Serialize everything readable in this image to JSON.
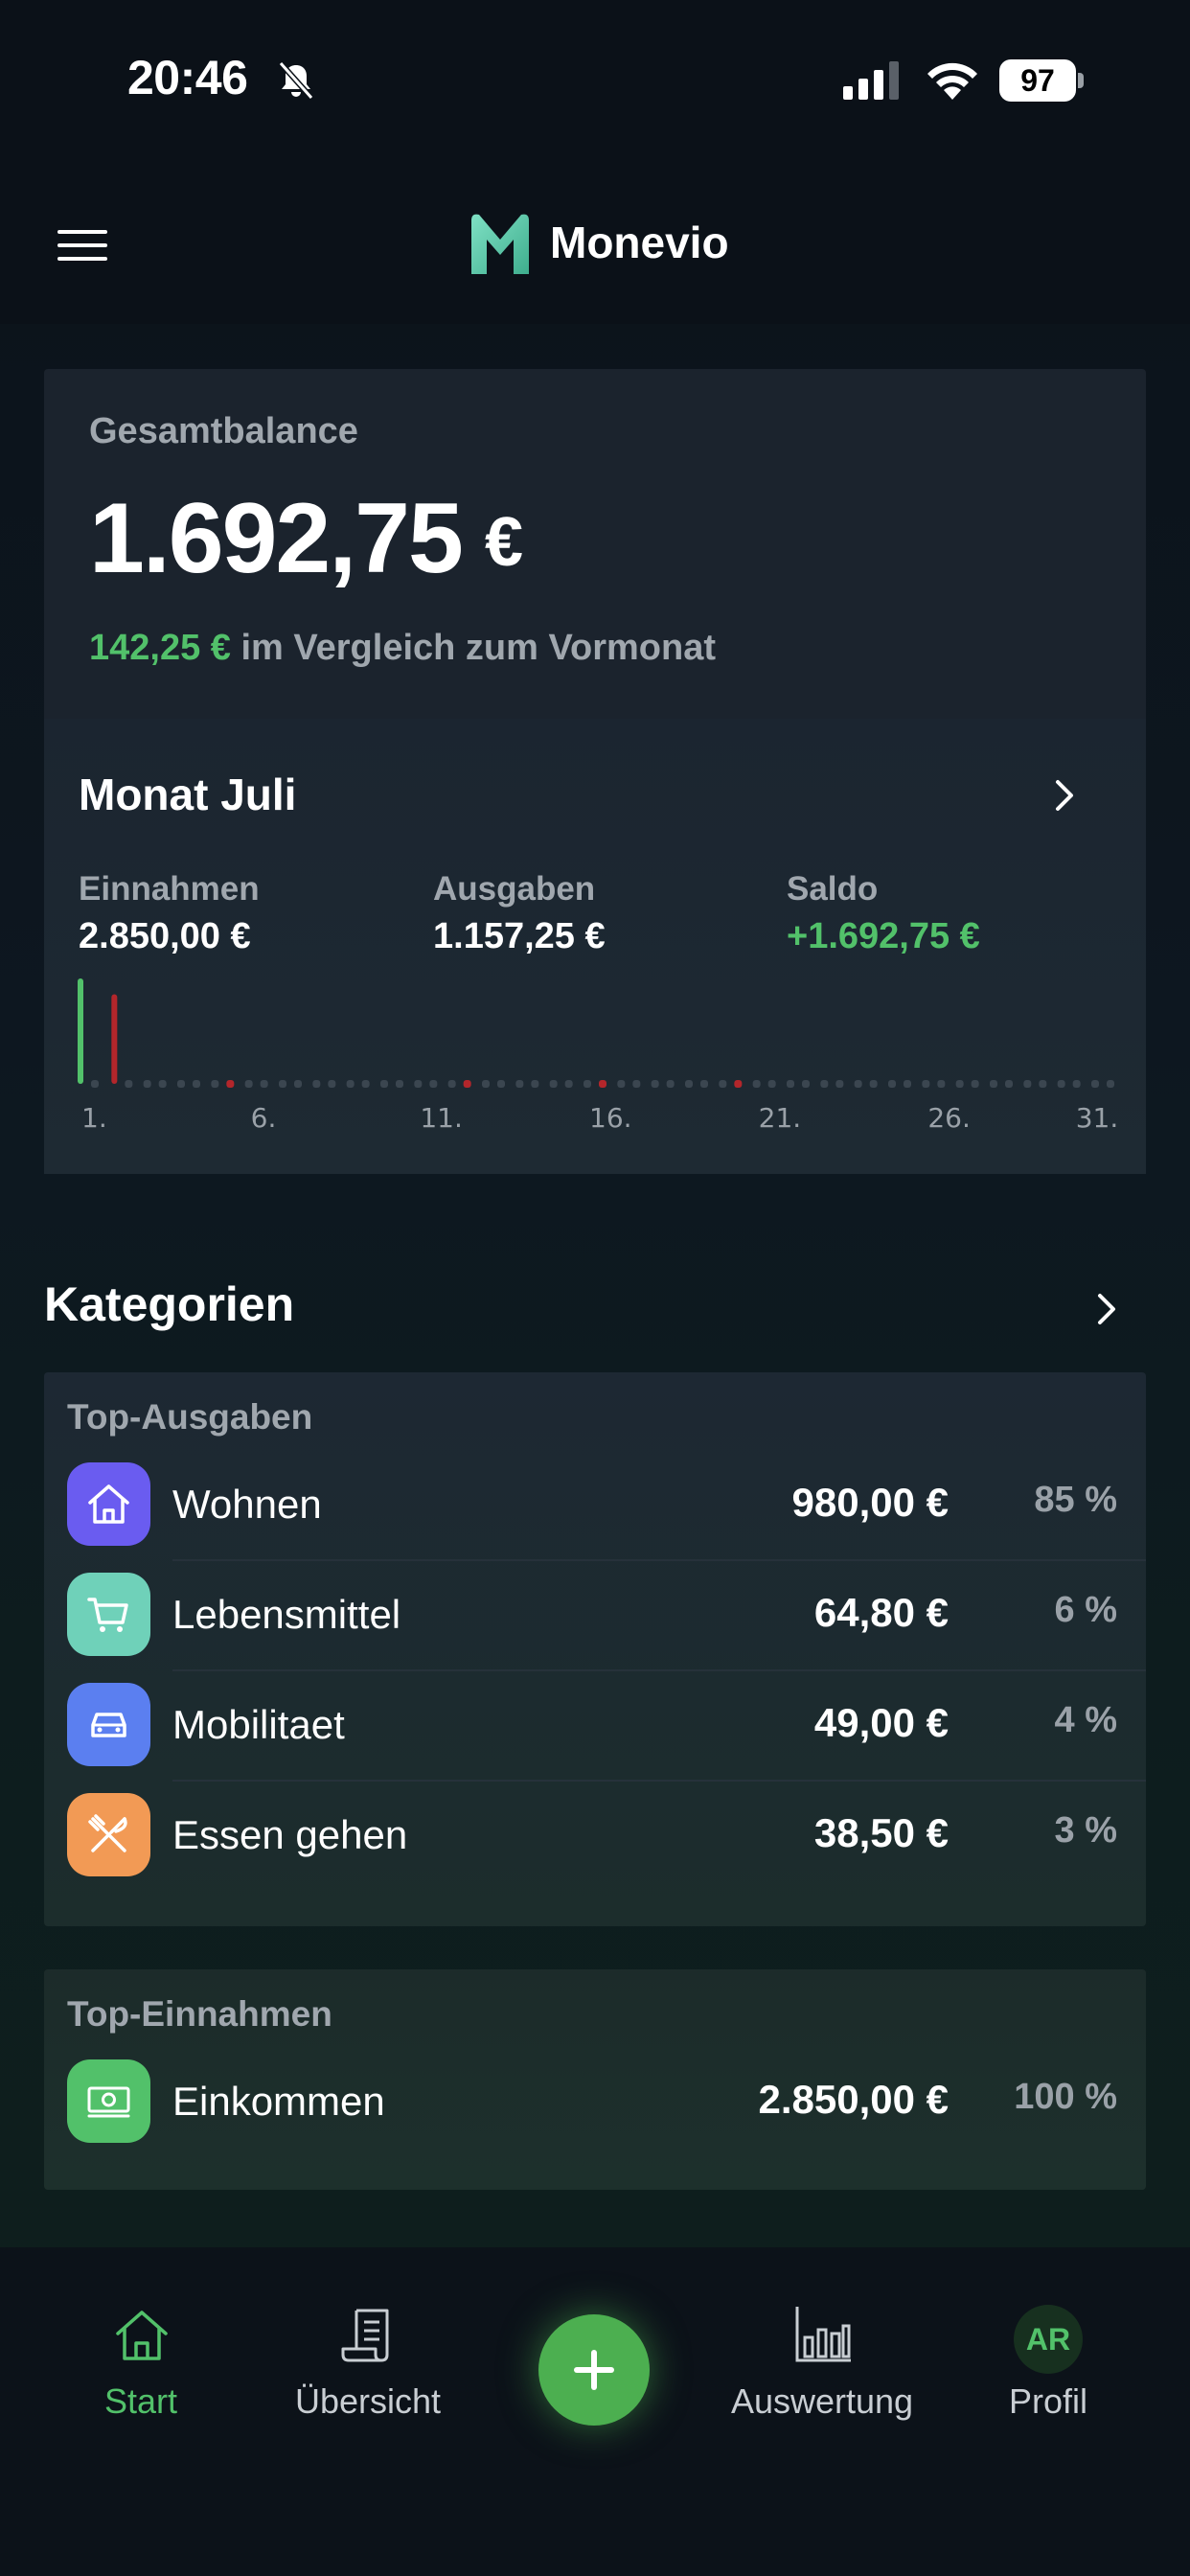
{
  "status_bar": {
    "time": "20:46",
    "battery": "97"
  },
  "header": {
    "app_name": "Monevio"
  },
  "balance": {
    "label": "Gesamtbalance",
    "value": "1.692,75",
    "currency": "€",
    "change": "142,25 €",
    "change_text": "im Vergleich zum Vormonat"
  },
  "month": {
    "title": "Monat Juli",
    "income_label": "Einnahmen",
    "income_value": "2.850,00 €",
    "expense_label": "Ausgaben",
    "expense_value": "1.157,25 €",
    "saldo_label": "Saldo",
    "saldo_value": "+1.692,75 €",
    "axis_ticks": [
      "1.",
      "6.",
      "11.",
      "16.",
      "21.",
      "26.",
      "31."
    ],
    "colors": {
      "income": "#52c16a",
      "expense": "#b3262b",
      "empty": "#3b4650"
    }
  },
  "chart_data": {
    "type": "bar",
    "days": 31,
    "bars": [
      {
        "day": 1,
        "kind": "income",
        "level": 1.0
      },
      {
        "day": 2,
        "kind": "expense",
        "level": 0.85
      },
      {
        "day": 5,
        "kind": "expense",
        "level": 0.03
      },
      {
        "day": 12,
        "kind": "expense",
        "level": 0.03
      },
      {
        "day": 16,
        "kind": "expense",
        "level": 0.03
      },
      {
        "day": 20,
        "kind": "expense",
        "level": 0.03
      }
    ],
    "xlabel": "",
    "ylabel": ""
  },
  "categories": {
    "title": "Kategorien",
    "top_expenses_label": "Top-Ausgaben",
    "top_income_label": "Top-Einnahmen",
    "expenses": [
      {
        "name": "Wohnen",
        "amount": "980,00 €",
        "percent": "85 %",
        "icon": "house-icon",
        "color": "#6a5cf0"
      },
      {
        "name": "Lebensmittel",
        "amount": "64,80 €",
        "percent": "6 %",
        "icon": "cart-icon",
        "color": "#6fd1b9"
      },
      {
        "name": "Mobilitaet",
        "amount": "49,00 €",
        "percent": "4 %",
        "icon": "car-icon",
        "color": "#5b7ff0"
      },
      {
        "name": "Essen gehen",
        "amount": "38,50 €",
        "percent": "3 %",
        "icon": "cutlery-icon",
        "color": "#f29a55"
      }
    ],
    "income": [
      {
        "name": "Einkommen",
        "amount": "2.850,00 €",
        "percent": "100 %",
        "icon": "money-icon",
        "color": "#52c16a"
      }
    ]
  },
  "tab_bar": {
    "start": "Start",
    "overview": "Übersicht",
    "analysis": "Auswertung",
    "profile": "Profil",
    "profile_initials": "AR",
    "active": "start"
  }
}
